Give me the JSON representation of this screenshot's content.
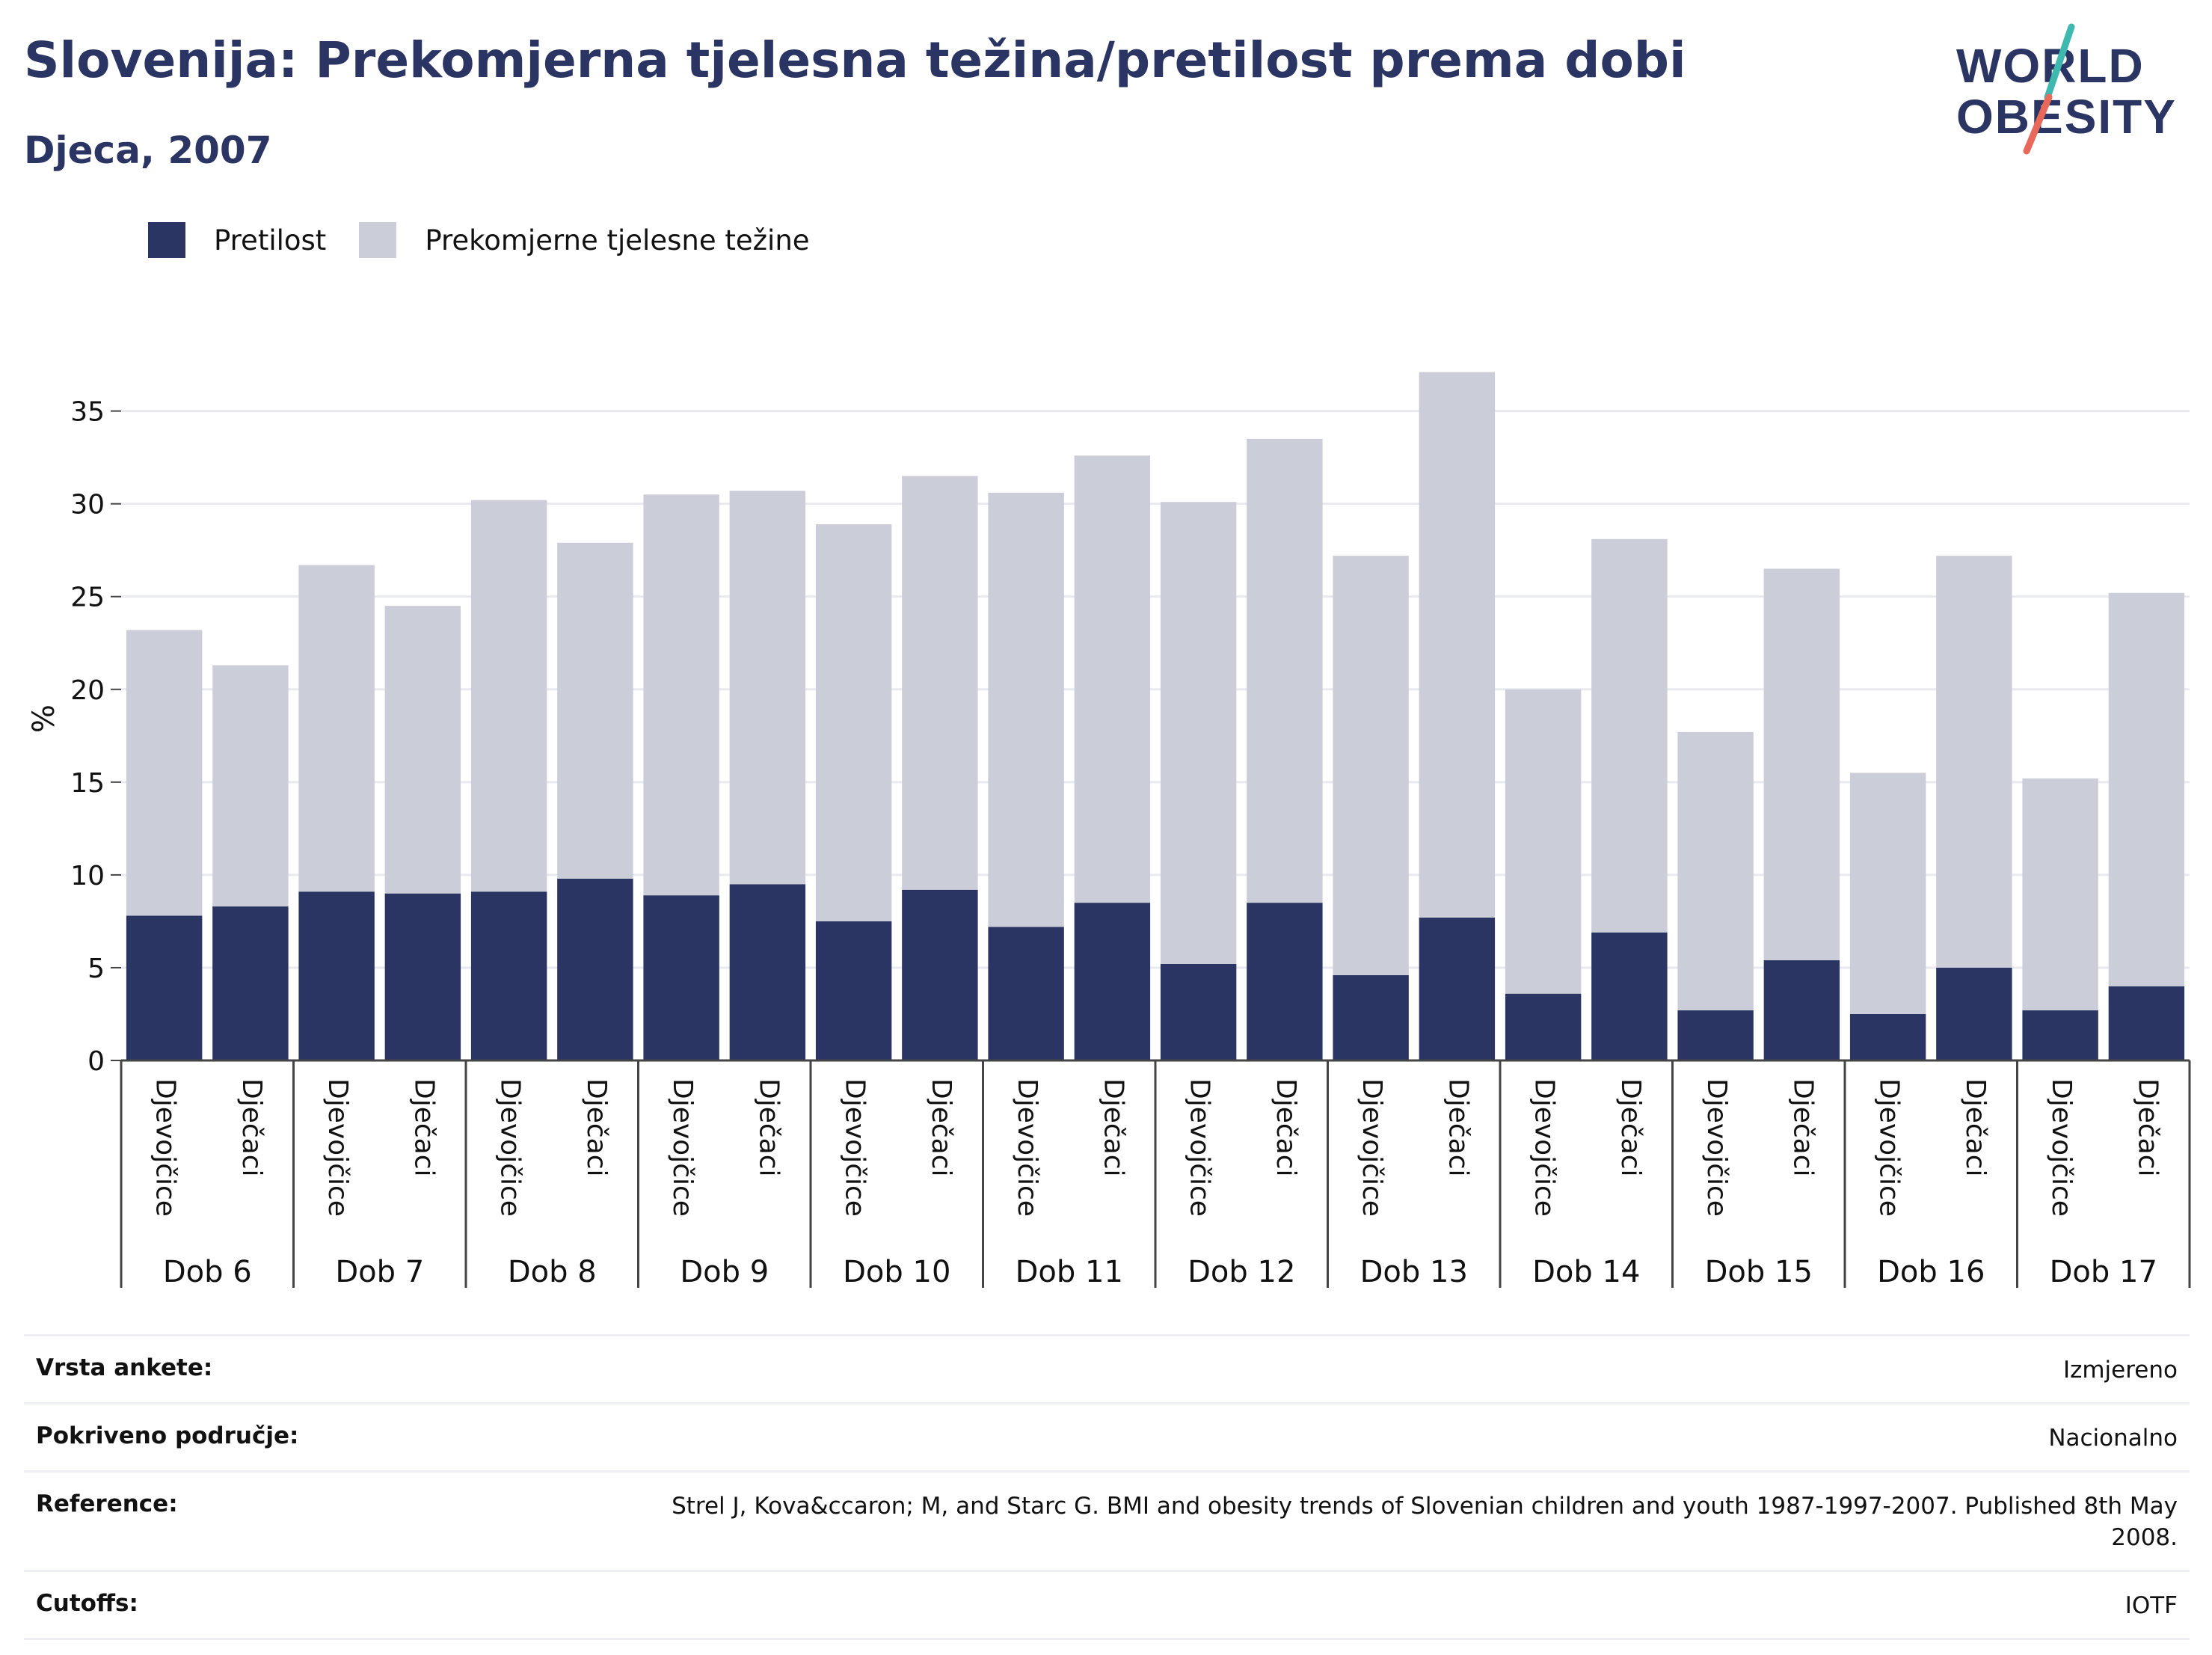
{
  "header": {
    "title": "Slovenija: Prekomjerna tjelesna težina/pretilost prema dobi",
    "subtitle": "Djeca, 2007"
  },
  "logo": {
    "line1": "WORLD",
    "line2": "OBESITY",
    "accent_colors": [
      "#3fb9b0",
      "#e8695a"
    ]
  },
  "legend": [
    {
      "label": "Pretilost",
      "color": "#2b3563"
    },
    {
      "label": "Prekomjerne tjelesne težine",
      "color": "#cbcdd9"
    }
  ],
  "chart_data": {
    "type": "bar",
    "stacked": true,
    "ylabel": "%",
    "ylim": [
      0,
      37
    ],
    "yticks": [
      0,
      5,
      10,
      15,
      20,
      25,
      30,
      35
    ],
    "grid": true,
    "legend_position": "top-left",
    "groups": [
      "Dob 6",
      "Dob 7",
      "Dob 8",
      "Dob 9",
      "Dob 10",
      "Dob 11",
      "Dob 12",
      "Dob 13",
      "Dob 14",
      "Dob 15",
      "Dob 16",
      "Dob 17"
    ],
    "subcategories": [
      "Djevojčice",
      "Dječaci"
    ],
    "series": [
      {
        "name": "Pretilost",
        "color": "#2b3563",
        "values": [
          7.8,
          8.3,
          9.1,
          9.0,
          9.1,
          9.8,
          8.9,
          9.5,
          7.5,
          9.2,
          7.2,
          8.5,
          5.2,
          8.5,
          4.6,
          7.7,
          3.6,
          6.9,
          2.7,
          5.4,
          2.5,
          5.0,
          2.7,
          4.0
        ]
      },
      {
        "name": "Prekomjerne tjelesne težine",
        "color": "#cbcdd9",
        "values": [
          15.4,
          13.0,
          17.6,
          15.5,
          21.1,
          18.1,
          21.6,
          21.2,
          21.4,
          22.3,
          23.4,
          24.1,
          24.9,
          25.0,
          22.6,
          29.4,
          16.4,
          21.2,
          15.0,
          21.1,
          13.0,
          22.2,
          12.5,
          21.2
        ]
      }
    ]
  },
  "meta": [
    {
      "key": "Vrsta ankete:",
      "value": "Izmjereno"
    },
    {
      "key": "Pokriveno područje:",
      "value": "Nacionalno"
    },
    {
      "key": "Reference:",
      "value": "Strel J, Kova&ccaron; M, and Starc G. BMI and obesity trends of Slovenian children and youth 1987-1997-2007. Published 8th May 2008."
    },
    {
      "key": "Cutoffs:",
      "value": "IOTF"
    }
  ]
}
